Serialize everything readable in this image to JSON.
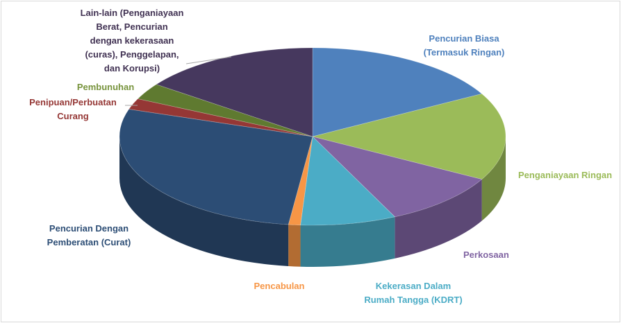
{
  "chart_data": {
    "type": "pie3d",
    "categories": [
      "Pencurian Biasa\n(Termasuk Ringan)",
      "Penganiayaan Ringan",
      "Perkosaan",
      "Kekerasan Dalam\nRumah Tangga (KDRT)",
      "Pencabulan",
      "Pencurian Dengan\nPemberatan (Curat)",
      "Penipuan/Perbuatan\nCurang",
      "Pembunuhan",
      "Lain-lain (Penganiayaan\nBerat, Pencurian\ndengan kekerasaan\n(curas), Penggelapan,\ndan Korupsi)"
    ],
    "values": [
      17,
      16,
      10,
      8,
      1,
      28,
      2,
      3,
      15
    ],
    "colors": [
      "#4f81bd",
      "#9bbb59",
      "#8064a2",
      "#4bacc6",
      "#f79646",
      "#2c4d75",
      "#953735",
      "#5f7a30",
      "#46385e"
    ],
    "label_colors": [
      "#4f81bd",
      "#9bbb59",
      "#8064a2",
      "#4bacc6",
      "#f79646",
      "#2c4d75",
      "#953735",
      "#77933c",
      "#403152"
    ]
  }
}
